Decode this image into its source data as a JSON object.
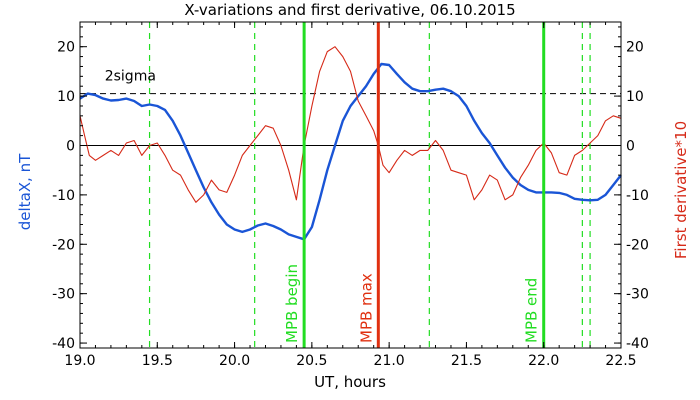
{
  "chart_data": {
    "type": "line",
    "title": "X-variations and first derivative, 06.10.2015",
    "xlabel": "UT, hours",
    "ylabel_left": "deltaX, nT",
    "ylabel_right": "First derivative*10",
    "xlim": [
      19.0,
      22.5
    ],
    "ylim": [
      -41,
      25
    ],
    "x_ticks": [
      {
        "value": 19.0,
        "label": "19.0"
      },
      {
        "value": 19.5,
        "label": "19.5"
      },
      {
        "value": 20.0,
        "label": "20.0"
      },
      {
        "value": 20.5,
        "label": "20.5"
      },
      {
        "value": 21.0,
        "label": "21.0"
      },
      {
        "value": 21.5,
        "label": "21.5"
      },
      {
        "value": 22.0,
        "label": "22.0"
      },
      {
        "value": 22.5,
        "label": "22.5"
      }
    ],
    "y_ticks": [
      {
        "value": 20,
        "label": "20"
      },
      {
        "value": 10,
        "label": "10"
      },
      {
        "value": 0,
        "label": "0"
      },
      {
        "value": -10,
        "label": "-10"
      },
      {
        "value": -20,
        "label": "-20"
      },
      {
        "value": -30,
        "label": "-30"
      },
      {
        "value": -40,
        "label": "-40"
      }
    ],
    "threshold": {
      "label": "2sigma",
      "value": 10.5
    },
    "dashed_markers": [
      19.45,
      20.13,
      21.26,
      22.25,
      22.3
    ],
    "events": [
      {
        "label": "MPB begin",
        "x": 20.45,
        "color": "#22dd22"
      },
      {
        "label": "MPB max",
        "x": 20.93,
        "color": "#e03010"
      },
      {
        "label": "MPB end",
        "x": 22.0,
        "color": "#22dd22"
      }
    ],
    "series": [
      {
        "color": "#1a55d6",
        "x": [
          19.0,
          19.05,
          19.1,
          19.15,
          19.2,
          19.25,
          19.3,
          19.35,
          19.4,
          19.45,
          19.5,
          19.55,
          19.6,
          19.65,
          19.7,
          19.75,
          19.8,
          19.85,
          19.9,
          19.95,
          20.0,
          20.05,
          20.1,
          20.15,
          20.2,
          20.25,
          20.3,
          20.35,
          20.4,
          20.45,
          20.5,
          20.55,
          20.6,
          20.65,
          20.7,
          20.75,
          20.8,
          20.85,
          20.9,
          20.95,
          21.0,
          21.05,
          21.1,
          21.15,
          21.2,
          21.25,
          21.3,
          21.35,
          21.4,
          21.45,
          21.5,
          21.55,
          21.6,
          21.65,
          21.7,
          21.75,
          21.8,
          21.85,
          21.9,
          21.95,
          22.0,
          22.05,
          22.1,
          22.15,
          22.2,
          22.25,
          22.3,
          22.35,
          22.4,
          22.45,
          22.5
        ],
        "values": [
          9.5,
          10.5,
          10.2,
          9.5,
          9.1,
          9.2,
          9.5,
          9.0,
          8.0,
          8.3,
          8.0,
          7.2,
          5.0,
          2.0,
          -1.5,
          -5.0,
          -8.5,
          -11.5,
          -14.0,
          -16.0,
          -17.0,
          -17.5,
          -17.0,
          -16.2,
          -15.8,
          -16.3,
          -17.0,
          -18.0,
          -18.5,
          -19.0,
          -16.5,
          -11.0,
          -5.0,
          0.0,
          5.0,
          8.0,
          10.0,
          12.0,
          14.5,
          16.5,
          16.3,
          14.5,
          12.8,
          11.5,
          11.0,
          11.0,
          11.3,
          11.5,
          11.0,
          10.0,
          8.0,
          5.0,
          2.5,
          0.5,
          -2.0,
          -4.5,
          -6.5,
          -8.0,
          -9.0,
          -9.5,
          -9.5,
          -9.5,
          -9.6,
          -10.0,
          -10.8,
          -11.0,
          -11.1,
          -11.0,
          -10.0,
          -8.0,
          -6.0
        ]
      },
      {
        "color": "#d62a18",
        "x": [
          19.0,
          19.03,
          19.06,
          19.1,
          19.15,
          19.2,
          19.25,
          19.3,
          19.35,
          19.4,
          19.45,
          19.5,
          19.55,
          19.6,
          19.65,
          19.7,
          19.75,
          19.8,
          19.85,
          19.9,
          19.95,
          20.0,
          20.05,
          20.1,
          20.15,
          20.2,
          20.25,
          20.3,
          20.35,
          20.4,
          20.45,
          20.5,
          20.55,
          20.6,
          20.65,
          20.7,
          20.75,
          20.8,
          20.85,
          20.9,
          20.93,
          20.96,
          21.0,
          21.05,
          21.1,
          21.15,
          21.2,
          21.25,
          21.3,
          21.35,
          21.4,
          21.45,
          21.5,
          21.55,
          21.6,
          21.65,
          21.7,
          21.75,
          21.8,
          21.85,
          21.9,
          21.95,
          22.0,
          22.05,
          22.1,
          22.15,
          22.2,
          22.25,
          22.3,
          22.35,
          22.4,
          22.45,
          22.5
        ],
        "values": [
          6.0,
          2.0,
          -2.0,
          -3.0,
          -2.0,
          -1.0,
          -2.0,
          0.5,
          1.0,
          -2.0,
          0.0,
          0.5,
          -2.0,
          -5.0,
          -6.0,
          -9.0,
          -11.5,
          -10.0,
          -7.0,
          -9.0,
          -9.5,
          -6.0,
          -2.0,
          0.0,
          2.0,
          4.0,
          3.5,
          0.0,
          -5.0,
          -11.0,
          0.0,
          8.0,
          15.0,
          19.0,
          20.0,
          18.0,
          15.0,
          9.0,
          6.0,
          3.0,
          0.0,
          -4.0,
          -5.5,
          -3.0,
          -1.0,
          -2.0,
          -1.0,
          -1.0,
          1.0,
          -1.0,
          -5.0,
          -5.5,
          -6.0,
          -11.0,
          -9.0,
          -6.0,
          -7.0,
          -11.0,
          -10.0,
          -6.5,
          -4.0,
          -1.0,
          0.5,
          -1.5,
          -5.5,
          -6.0,
          -2.0,
          -1.0,
          0.5,
          2.0,
          5.0,
          6.0,
          5.5
        ]
      }
    ]
  }
}
